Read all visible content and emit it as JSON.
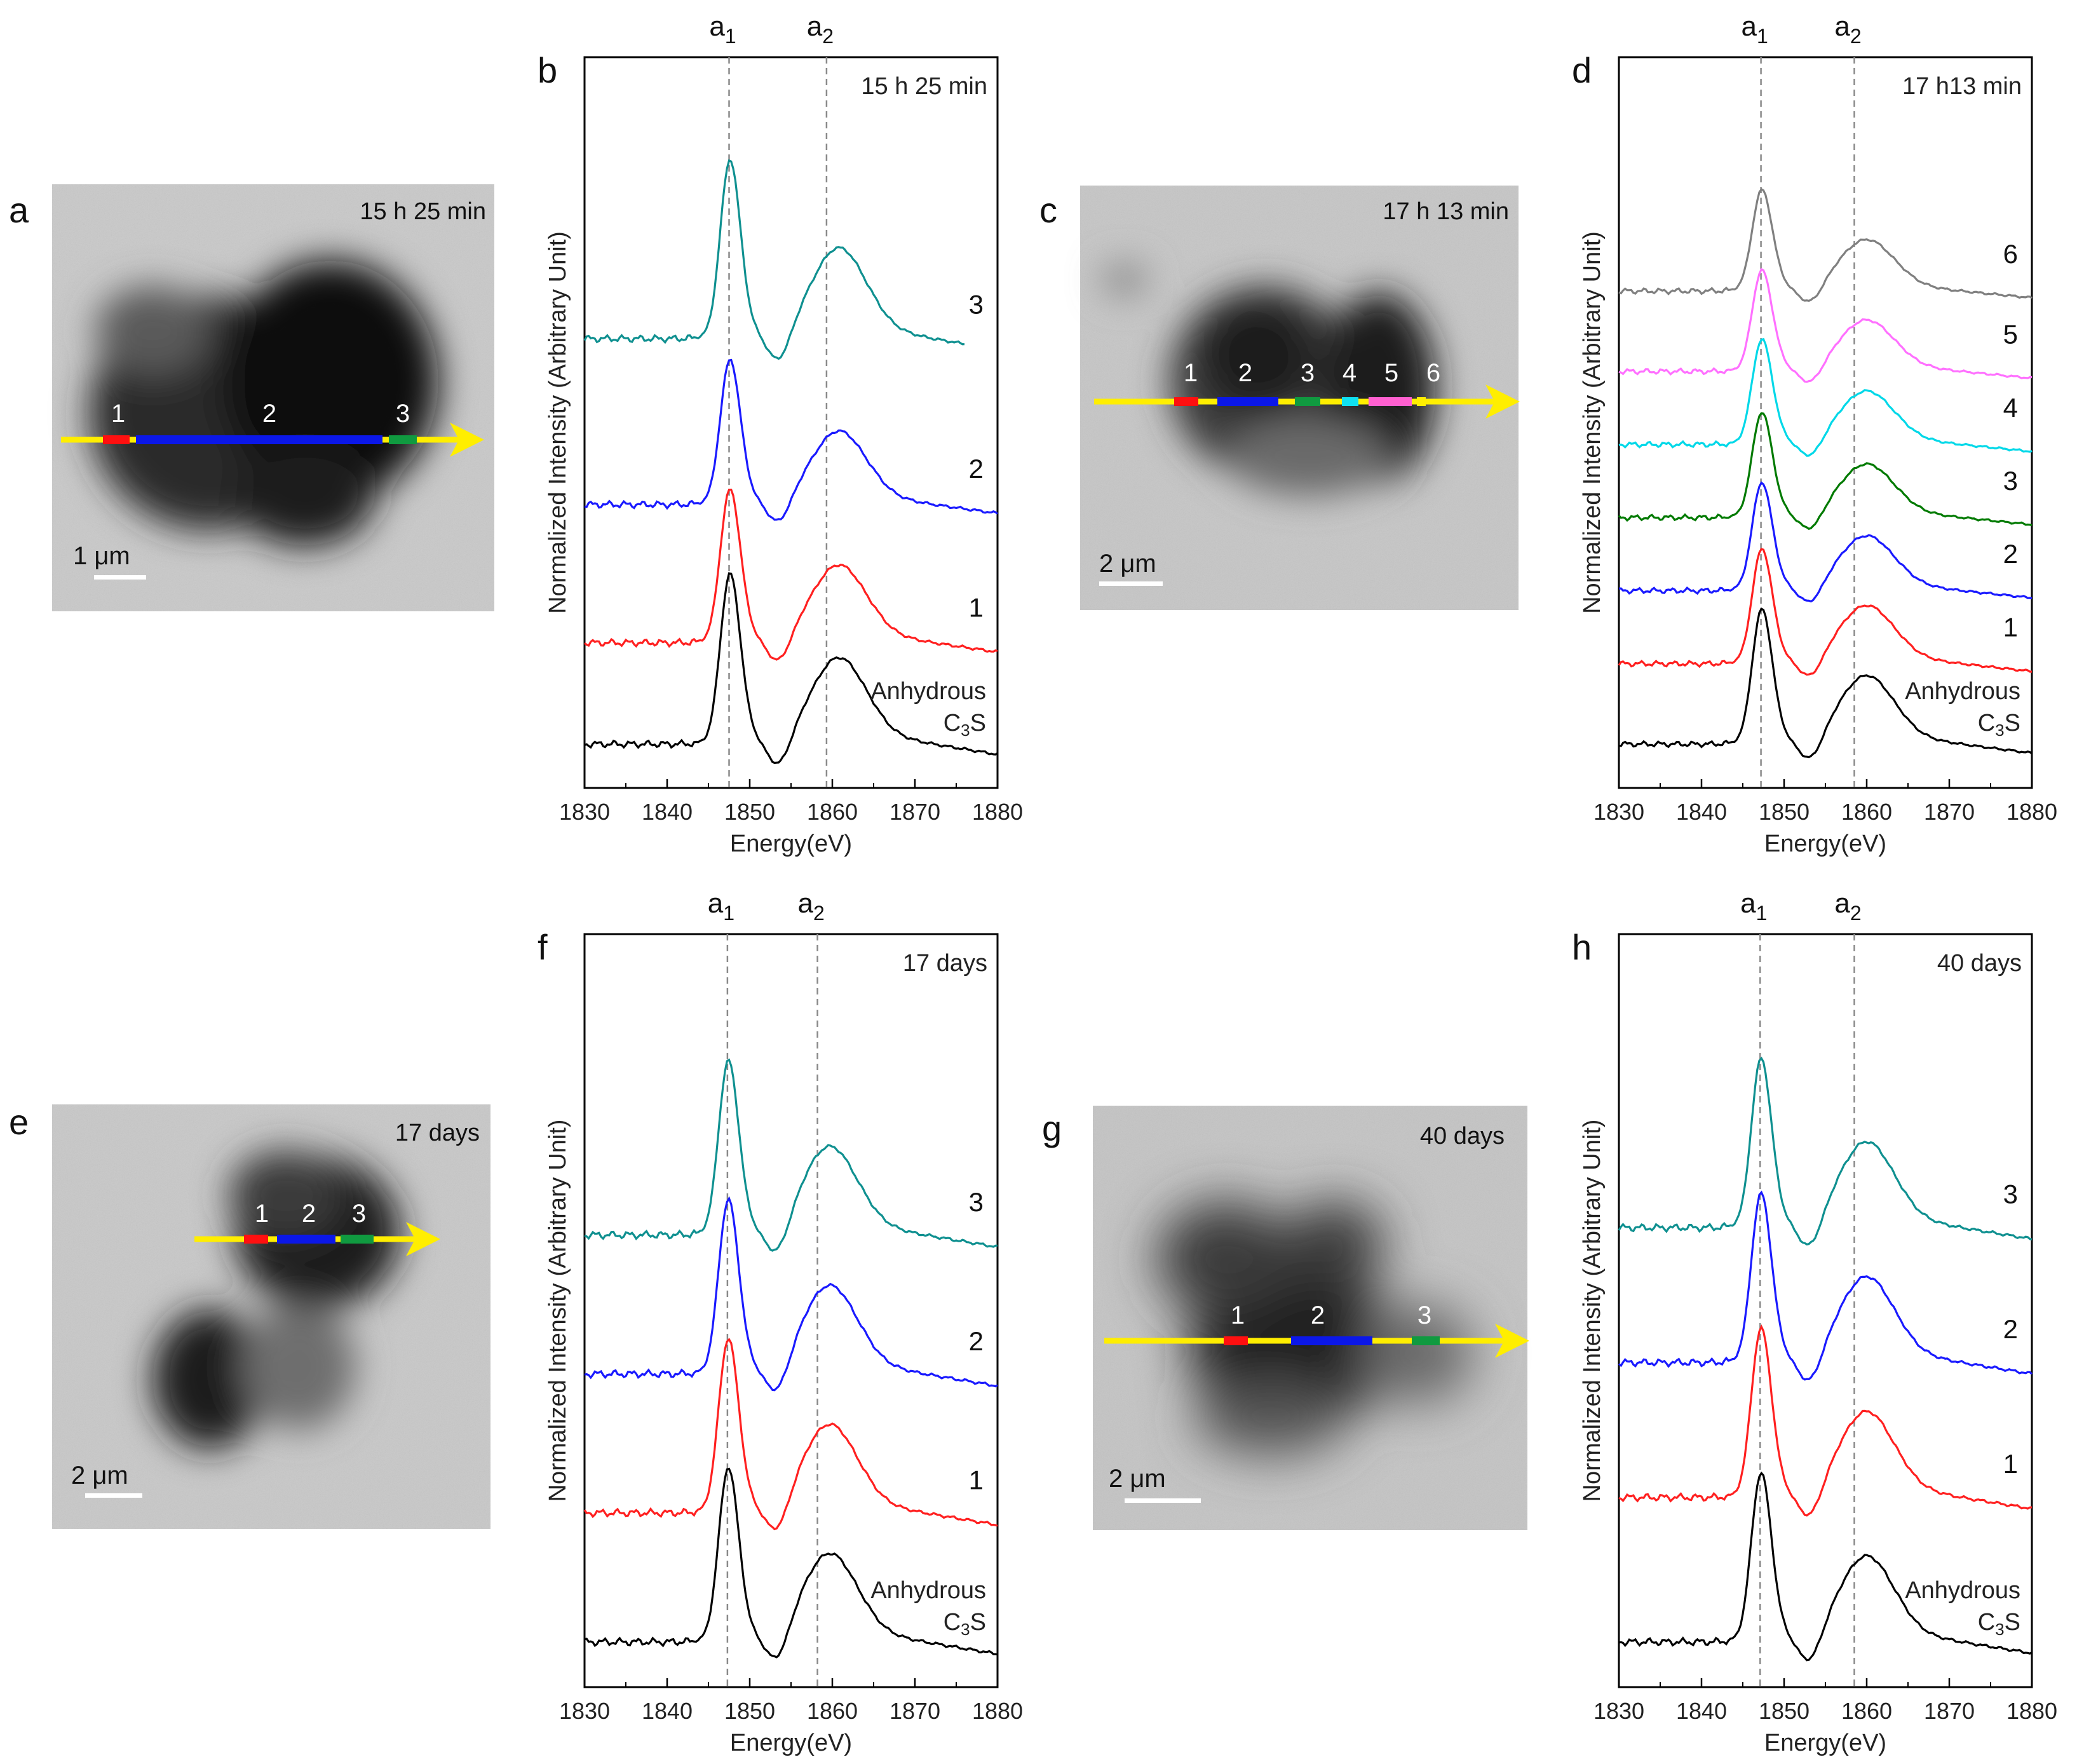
{
  "chart_data": [
    {
      "panel": "b",
      "type": "line",
      "time_label": "15 h 25 min",
      "xlabel": "Energy(eV)",
      "ylabel": "Normalized Intensity (Arbitrary Unit)",
      "xlim": [
        1830,
        1880
      ],
      "xticks": [
        1830,
        1840,
        1850,
        1860,
        1870,
        1880
      ],
      "peak_lines": [
        {
          "label": "a",
          "sub": "1",
          "x": 1847.5
        },
        {
          "label": "a",
          "sub": "2",
          "x": 1859.3
        }
      ],
      "reference_label": [
        "Anhydrous",
        "C",
        "3",
        "S"
      ],
      "series": [
        {
          "name": "Anhydrous C3S",
          "label": "",
          "color": "#000000",
          "offset": 0.0,
          "peak": 1.0,
          "x_end": 1880
        },
        {
          "name": "1",
          "label": "1",
          "color": "#ff2020",
          "offset": 0.55,
          "peak": 0.9,
          "x_end": 1880
        },
        {
          "name": "2",
          "label": "2",
          "color": "#1a1aff",
          "offset": 1.3,
          "peak": 0.85,
          "x_end": 1880
        },
        {
          "name": "3",
          "label": "3",
          "color": "#0f9090",
          "offset": 2.2,
          "peak": 1.05,
          "x_end": 1876
        }
      ]
    },
    {
      "panel": "d",
      "type": "line",
      "time_label": "17 h13 min",
      "xlabel": "Energy(eV)",
      "ylabel": "Normalized Intensity (Arbitrary Unit)",
      "xlim": [
        1830,
        1880
      ],
      "xticks": [
        1830,
        1840,
        1850,
        1860,
        1870,
        1880
      ],
      "peak_lines": [
        {
          "label": "a",
          "sub": "1",
          "x": 1847.2
        },
        {
          "label": "a",
          "sub": "2",
          "x": 1858.5
        }
      ],
      "reference_label": [
        "Anhydrous",
        "C",
        "3",
        "S"
      ],
      "series": [
        {
          "name": "Anhydrous C3S",
          "label": "",
          "color": "#000000",
          "offset": 0.0,
          "peak": 1.0,
          "x_end": 1880
        },
        {
          "name": "1",
          "label": "1",
          "color": "#ff2020",
          "offset": 0.55,
          "peak": 0.85,
          "x_end": 1880
        },
        {
          "name": "2",
          "label": "2",
          "color": "#1a1aff",
          "offset": 1.05,
          "peak": 0.8,
          "x_end": 1880
        },
        {
          "name": "3",
          "label": "3",
          "color": "#007a00",
          "offset": 1.55,
          "peak": 0.78,
          "x_end": 1880
        },
        {
          "name": "4",
          "label": "4",
          "color": "#00d8e8",
          "offset": 2.05,
          "peak": 0.78,
          "x_end": 1880
        },
        {
          "name": "5",
          "label": "5",
          "color": "#ff70ff",
          "offset": 2.55,
          "peak": 0.75,
          "x_end": 1880
        },
        {
          "name": "6",
          "label": "6",
          "color": "#808080",
          "offset": 3.1,
          "peak": 0.75,
          "x_end": 1880
        }
      ]
    },
    {
      "panel": "f",
      "type": "line",
      "time_label": "17 days",
      "xlabel": "Energy(eV)",
      "ylabel": "Normalized Intensity (Arbitrary Unit)",
      "xlim": [
        1830,
        1880
      ],
      "xticks": [
        1830,
        1840,
        1850,
        1860,
        1870,
        1880
      ],
      "peak_lines": [
        {
          "label": "a",
          "sub": "1",
          "x": 1847.3
        },
        {
          "label": "a",
          "sub": "2",
          "x": 1858.2
        }
      ],
      "reference_label": [
        "Anhydrous",
        "C",
        "3",
        "S"
      ],
      "series": [
        {
          "name": "Anhydrous C3S",
          "label": "",
          "color": "#000000",
          "offset": 0.0,
          "peak": 0.95,
          "x_end": 1880
        },
        {
          "name": "1",
          "label": "1",
          "color": "#ff2020",
          "offset": 0.65,
          "peak": 0.95,
          "x_end": 1880
        },
        {
          "name": "2",
          "label": "2",
          "color": "#1a1aff",
          "offset": 1.35,
          "peak": 0.95,
          "x_end": 1880
        },
        {
          "name": "3",
          "label": "3",
          "color": "#0f9090",
          "offset": 2.05,
          "peak": 0.95,
          "x_end": 1880
        }
      ]
    },
    {
      "panel": "h",
      "type": "line",
      "time_label": "40 days",
      "xlabel": "Energy(eV)",
      "ylabel": "Normalized Intensity (Arbitrary Unit)",
      "xlim": [
        1830,
        1880
      ],
      "xticks": [
        1830,
        1840,
        1850,
        1860,
        1870,
        1880
      ],
      "peak_lines": [
        {
          "label": "a",
          "sub": "1",
          "x": 1847.1
        },
        {
          "label": "a",
          "sub": "2",
          "x": 1858.5
        }
      ],
      "reference_label": [
        "Anhydrous",
        "C",
        "3",
        "S"
      ],
      "series": [
        {
          "name": "Anhydrous C3S",
          "label": "",
          "color": "#000000",
          "offset": 0.0,
          "peak": 0.95,
          "x_end": 1880
        },
        {
          "name": "1",
          "label": "1",
          "color": "#ff2020",
          "offset": 0.75,
          "peak": 0.95,
          "x_end": 1880
        },
        {
          "name": "2",
          "label": "2",
          "color": "#1a1aff",
          "offset": 1.45,
          "peak": 0.95,
          "x_end": 1880
        },
        {
          "name": "3",
          "label": "3",
          "color": "#0f9090",
          "offset": 2.15,
          "peak": 0.95,
          "x_end": 1880
        }
      ]
    }
  ],
  "images": [
    {
      "panel": "a",
      "time_label": "15 h 25 min",
      "scale_label": "1 μm",
      "segments": [
        {
          "label": "1",
          "color": "#ff1010"
        },
        {
          "label": "2",
          "color": "#0b17e8"
        },
        {
          "label": "3",
          "color": "#109a40"
        }
      ]
    },
    {
      "panel": "c",
      "time_label": "17 h 13 min",
      "scale_label": "2 μm",
      "segments": [
        {
          "label": "1",
          "color": "#ff1010"
        },
        {
          "label": "2",
          "color": "#0b17e8"
        },
        {
          "label": "3",
          "color": "#109a40"
        },
        {
          "label": "4",
          "color": "#10e0f0"
        },
        {
          "label": "5",
          "color": "#ff60d0"
        },
        {
          "label": "6",
          "color": "#ffee00"
        }
      ]
    },
    {
      "panel": "e",
      "time_label": "17 days",
      "scale_label": "2 μm",
      "segments": [
        {
          "label": "1",
          "color": "#ff1010"
        },
        {
          "label": "2",
          "color": "#0b17e8"
        },
        {
          "label": "3",
          "color": "#109a40"
        }
      ]
    },
    {
      "panel": "g",
      "time_label": "40 days",
      "scale_label": "2 μm",
      "segments": [
        {
          "label": "1",
          "color": "#ff1010"
        },
        {
          "label": "2",
          "color": "#0b17e8"
        },
        {
          "label": "3",
          "color": "#109a40"
        }
      ]
    }
  ],
  "colors": {
    "arrow": "#ffee00",
    "axis": "#000000",
    "dashed": "#8a8a8a",
    "image_bg": "#c8c8c8"
  }
}
